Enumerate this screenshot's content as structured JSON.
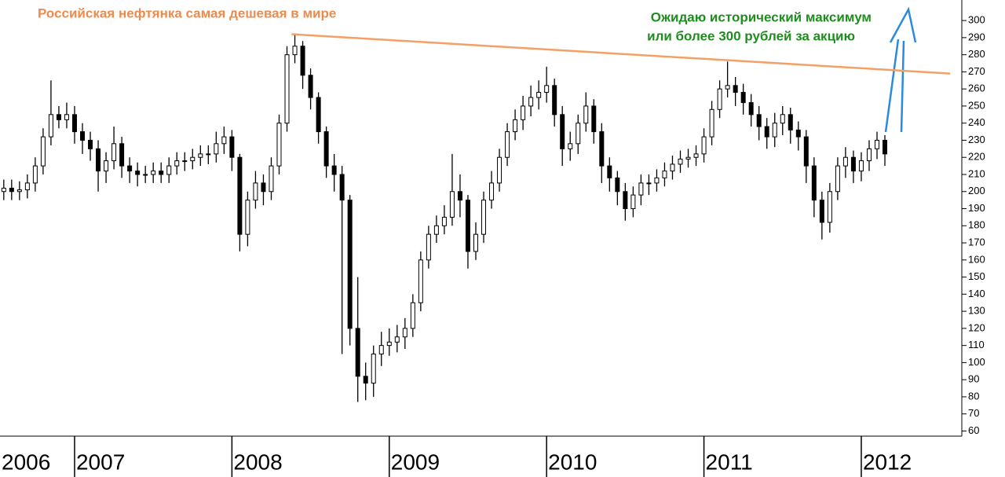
{
  "chart_data": {
    "type": "candlestick",
    "title": "Российская нефтянка самая дешевая в мире",
    "annotations": [
      "Ожидаю исторический максимум",
      "или более 300 рублей за акцию"
    ],
    "title_color": "#f08a4b",
    "annotation_color": "#1e8c1e",
    "x": [
      2006.55,
      2006.6,
      2006.65,
      2006.7,
      2006.75,
      2006.8,
      2006.85,
      2006.9,
      2006.95,
      2007,
      2007.05,
      2007.1,
      2007.15,
      2007.2,
      2007.25,
      2007.3,
      2007.35,
      2007.4,
      2007.45,
      2007.5,
      2007.55,
      2007.6,
      2007.65,
      2007.7,
      2007.75,
      2007.8,
      2007.85,
      2007.9,
      2007.95,
      2008,
      2008.05,
      2008.1,
      2008.15,
      2008.2,
      2008.25,
      2008.3,
      2008.35,
      2008.4,
      2008.45,
      2008.5,
      2008.55,
      2008.6,
      2008.65,
      2008.7,
      2008.75,
      2008.8,
      2008.85,
      2008.9,
      2008.95,
      2009,
      2009.05,
      2009.1,
      2009.15,
      2009.2,
      2009.25,
      2009.3,
      2009.35,
      2009.4,
      2009.45,
      2009.5,
      2009.55,
      2009.6,
      2009.65,
      2009.7,
      2009.75,
      2009.8,
      2009.85,
      2009.9,
      2009.95,
      2010,
      2010.05,
      2010.1,
      2010.15,
      2010.2,
      2010.25,
      2010.3,
      2010.35,
      2010.4,
      2010.45,
      2010.5,
      2010.55,
      2010.6,
      2010.65,
      2010.7,
      2010.75,
      2010.8,
      2010.85,
      2010.9,
      2010.95,
      2011,
      2011.05,
      2011.1,
      2011.15,
      2011.2,
      2011.25,
      2011.3,
      2011.35,
      2011.4,
      2011.45,
      2011.5,
      2011.55,
      2011.6,
      2011.65,
      2011.7,
      2011.75,
      2011.8,
      2011.85,
      2011.9,
      2011.95,
      2012,
      2012.05,
      2012.1,
      2012.15
    ],
    "open": [
      200,
      202,
      200,
      201,
      205,
      215,
      232,
      245,
      242,
      245,
      235,
      230,
      225,
      212,
      218,
      228,
      215,
      212,
      210,
      210,
      212,
      210,
      215,
      218,
      218,
      220,
      222,
      222,
      228,
      232,
      220,
      175,
      195,
      205,
      200,
      215,
      240,
      280,
      285,
      268,
      255,
      235,
      215,
      210,
      195,
      120,
      92,
      88,
      105,
      110,
      112,
      115,
      120,
      135,
      160,
      175,
      180,
      185,
      200,
      195,
      165,
      175,
      195,
      205,
      220,
      235,
      242,
      250,
      255,
      258,
      262,
      245,
      225,
      228,
      240,
      250,
      235,
      215,
      208,
      200,
      190,
      198,
      205,
      205,
      208,
      212,
      216,
      219,
      220,
      222,
      232,
      248,
      260,
      262,
      258,
      252,
      245,
      238,
      232,
      240,
      245,
      236,
      232,
      215,
      195,
      182,
      200,
      215,
      220,
      212,
      218,
      225,
      230
    ],
    "high": [
      207,
      207,
      206,
      210,
      220,
      237,
      265,
      250,
      252,
      250,
      240,
      235,
      230,
      223,
      238,
      232,
      220,
      217,
      215,
      217,
      217,
      220,
      223,
      223,
      225,
      227,
      227,
      235,
      238,
      236,
      222,
      200,
      212,
      210,
      220,
      245,
      285,
      292,
      288,
      272,
      258,
      238,
      222,
      215,
      198,
      150,
      100,
      110,
      118,
      120,
      122,
      126,
      140,
      165,
      180,
      186,
      192,
      222,
      210,
      198,
      182,
      200,
      212,
      225,
      240,
      248,
      256,
      262,
      265,
      273,
      266,
      250,
      235,
      245,
      258,
      254,
      240,
      220,
      212,
      205,
      203,
      210,
      210,
      213,
      217,
      221,
      224,
      225,
      227,
      237,
      253,
      265,
      276,
      267,
      263,
      257,
      250,
      243,
      246,
      250,
      249,
      241,
      236,
      220,
      200,
      205,
      220,
      226,
      224,
      223,
      230,
      235,
      233
    ],
    "low": [
      195,
      195,
      195,
      196,
      200,
      210,
      227,
      237,
      237,
      228,
      222,
      218,
      200,
      205,
      213,
      208,
      205,
      203,
      205,
      205,
      205,
      205,
      210,
      212,
      213,
      215,
      216,
      217,
      222,
      212,
      165,
      168,
      190,
      192,
      195,
      210,
      235,
      275,
      260,
      248,
      228,
      208,
      200,
      105,
      110,
      77,
      78,
      80,
      98,
      104,
      106,
      108,
      115,
      130,
      155,
      170,
      175,
      180,
      185,
      155,
      160,
      170,
      190,
      200,
      215,
      230,
      236,
      244,
      248,
      252,
      238,
      215,
      218,
      222,
      235,
      228,
      205,
      200,
      192,
      183,
      185,
      192,
      198,
      200,
      203,
      207,
      211,
      214,
      215,
      217,
      227,
      243,
      255,
      250,
      245,
      238,
      230,
      225,
      226,
      233,
      228,
      224,
      205,
      185,
      172,
      176,
      195,
      208,
      205,
      206,
      212,
      219,
      215
    ],
    "close": [
      202,
      200,
      201,
      205,
      215,
      232,
      245,
      242,
      245,
      235,
      230,
      225,
      212,
      218,
      228,
      215,
      212,
      210,
      210,
      212,
      210,
      215,
      218,
      218,
      220,
      222,
      222,
      228,
      232,
      220,
      175,
      195,
      205,
      200,
      215,
      240,
      280,
      285,
      268,
      255,
      235,
      215,
      210,
      195,
      120,
      92,
      88,
      105,
      110,
      112,
      115,
      120,
      135,
      160,
      175,
      180,
      185,
      200,
      195,
      165,
      175,
      195,
      205,
      220,
      235,
      242,
      250,
      255,
      258,
      262,
      245,
      225,
      228,
      240,
      250,
      235,
      215,
      208,
      200,
      190,
      198,
      205,
      205,
      208,
      212,
      216,
      219,
      220,
      222,
      232,
      248,
      260,
      262,
      258,
      252,
      245,
      238,
      232,
      240,
      245,
      236,
      232,
      215,
      195,
      182,
      200,
      215,
      220,
      212,
      218,
      225,
      230,
      222
    ],
    "color": "#000000",
    "trendline": {
      "x": [
        2008.38,
        2012.565
      ],
      "y": [
        292,
        269
      ],
      "color": "#f4a064"
    },
    "xlim": [
      2006.526,
      2012.624
    ],
    "xticks": [
      2006,
      2007,
      2008,
      2009,
      2010,
      2011,
      2012
    ],
    "ylim": [
      57,
      312
    ],
    "yticks": [
      60,
      70,
      80,
      90,
      100,
      110,
      120,
      130,
      140,
      150,
      160,
      170,
      180,
      190,
      200,
      210,
      220,
      230,
      240,
      250,
      260,
      270,
      280,
      290,
      300
    ]
  }
}
